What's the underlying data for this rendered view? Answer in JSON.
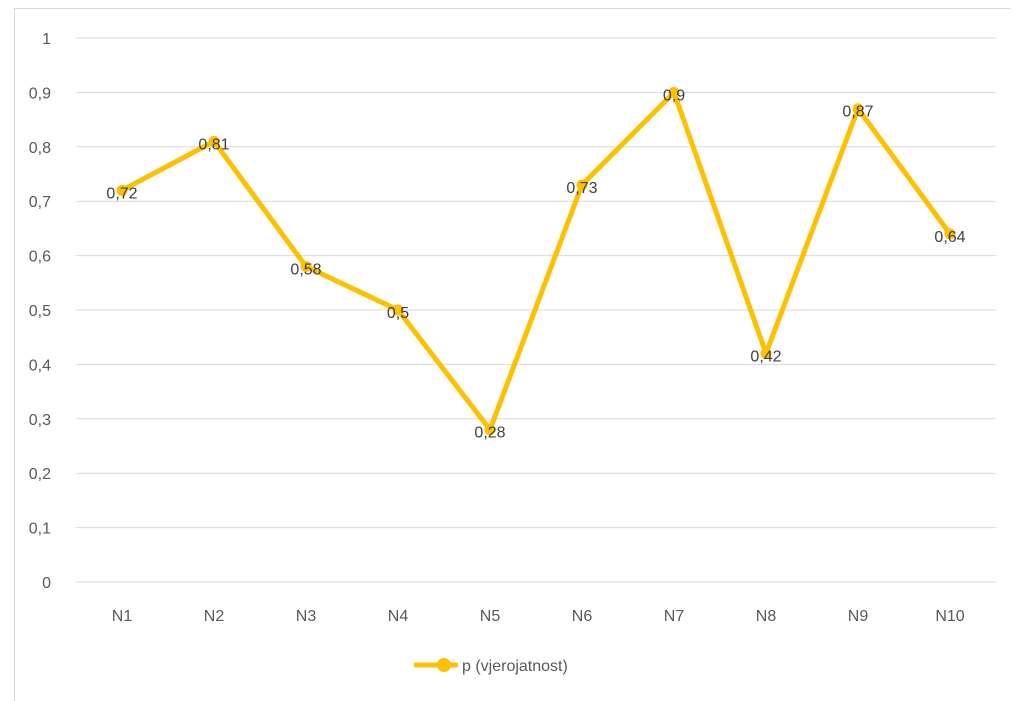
{
  "chart_data": {
    "type": "line",
    "title": "",
    "xlabel": "",
    "ylabel": "",
    "categories": [
      "N1",
      "N2",
      "N3",
      "N4",
      "N5",
      "N6",
      "N7",
      "N8",
      "N9",
      "N10"
    ],
    "series": [
      {
        "name": "p (vjerojatnost)",
        "values": [
          0.72,
          0.81,
          0.58,
          0.5,
          0.28,
          0.73,
          0.9,
          0.42,
          0.87,
          0.64
        ],
        "labels": [
          "0,72",
          "0,81",
          "0,58",
          "0,5",
          "0,28",
          "0,73",
          "0,9",
          "0,42",
          "0,87",
          "0,64"
        ],
        "color": "#FFC000"
      }
    ],
    "ylim": [
      0,
      1
    ],
    "yticks": [
      0,
      0.1,
      0.2,
      0.3,
      0.4,
      0.5,
      0.6,
      0.7,
      0.8,
      0.9,
      1
    ],
    "ytick_labels": [
      "0",
      "0,1",
      "0,2",
      "0,3",
      "0,4",
      "0,5",
      "0,6",
      "0,7",
      "0,8",
      "0,9",
      "1"
    ],
    "grid": true,
    "gridline_color": "#d9d9d9",
    "legend_position": "bottom"
  }
}
